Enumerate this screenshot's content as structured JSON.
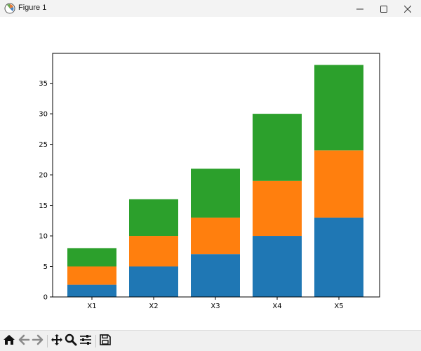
{
  "window": {
    "title": "Figure 1"
  },
  "icons": {
    "app": "matplotlib-figure-icon",
    "minimize": "minimize-icon",
    "maximize": "maximize-icon",
    "close": "close-icon",
    "home": "home-icon",
    "back": "arrow-left-icon",
    "forward": "arrow-right-icon",
    "pan": "move-icon",
    "zoom": "magnifier-icon",
    "configure": "sliders-icon",
    "save": "floppy-disk-icon"
  },
  "chart_data": {
    "type": "bar",
    "stacked": true,
    "categories": [
      "X1",
      "X2",
      "X3",
      "X4",
      "X5"
    ],
    "series": [
      {
        "values": [
          2,
          5,
          7,
          10,
          13
        ],
        "color": "#1f77b4"
      },
      {
        "values": [
          3,
          5,
          6,
          9,
          11
        ],
        "color": "#ff7f0e"
      },
      {
        "values": [
          3,
          6,
          8,
          11,
          14
        ],
        "color": "#2ca02c"
      }
    ],
    "yticks": [
      0,
      5,
      10,
      15,
      20,
      25,
      30,
      35
    ],
    "ylim": [
      0,
      39.9
    ],
    "grid": false,
    "title": "",
    "xlabel": "",
    "ylabel": ""
  }
}
